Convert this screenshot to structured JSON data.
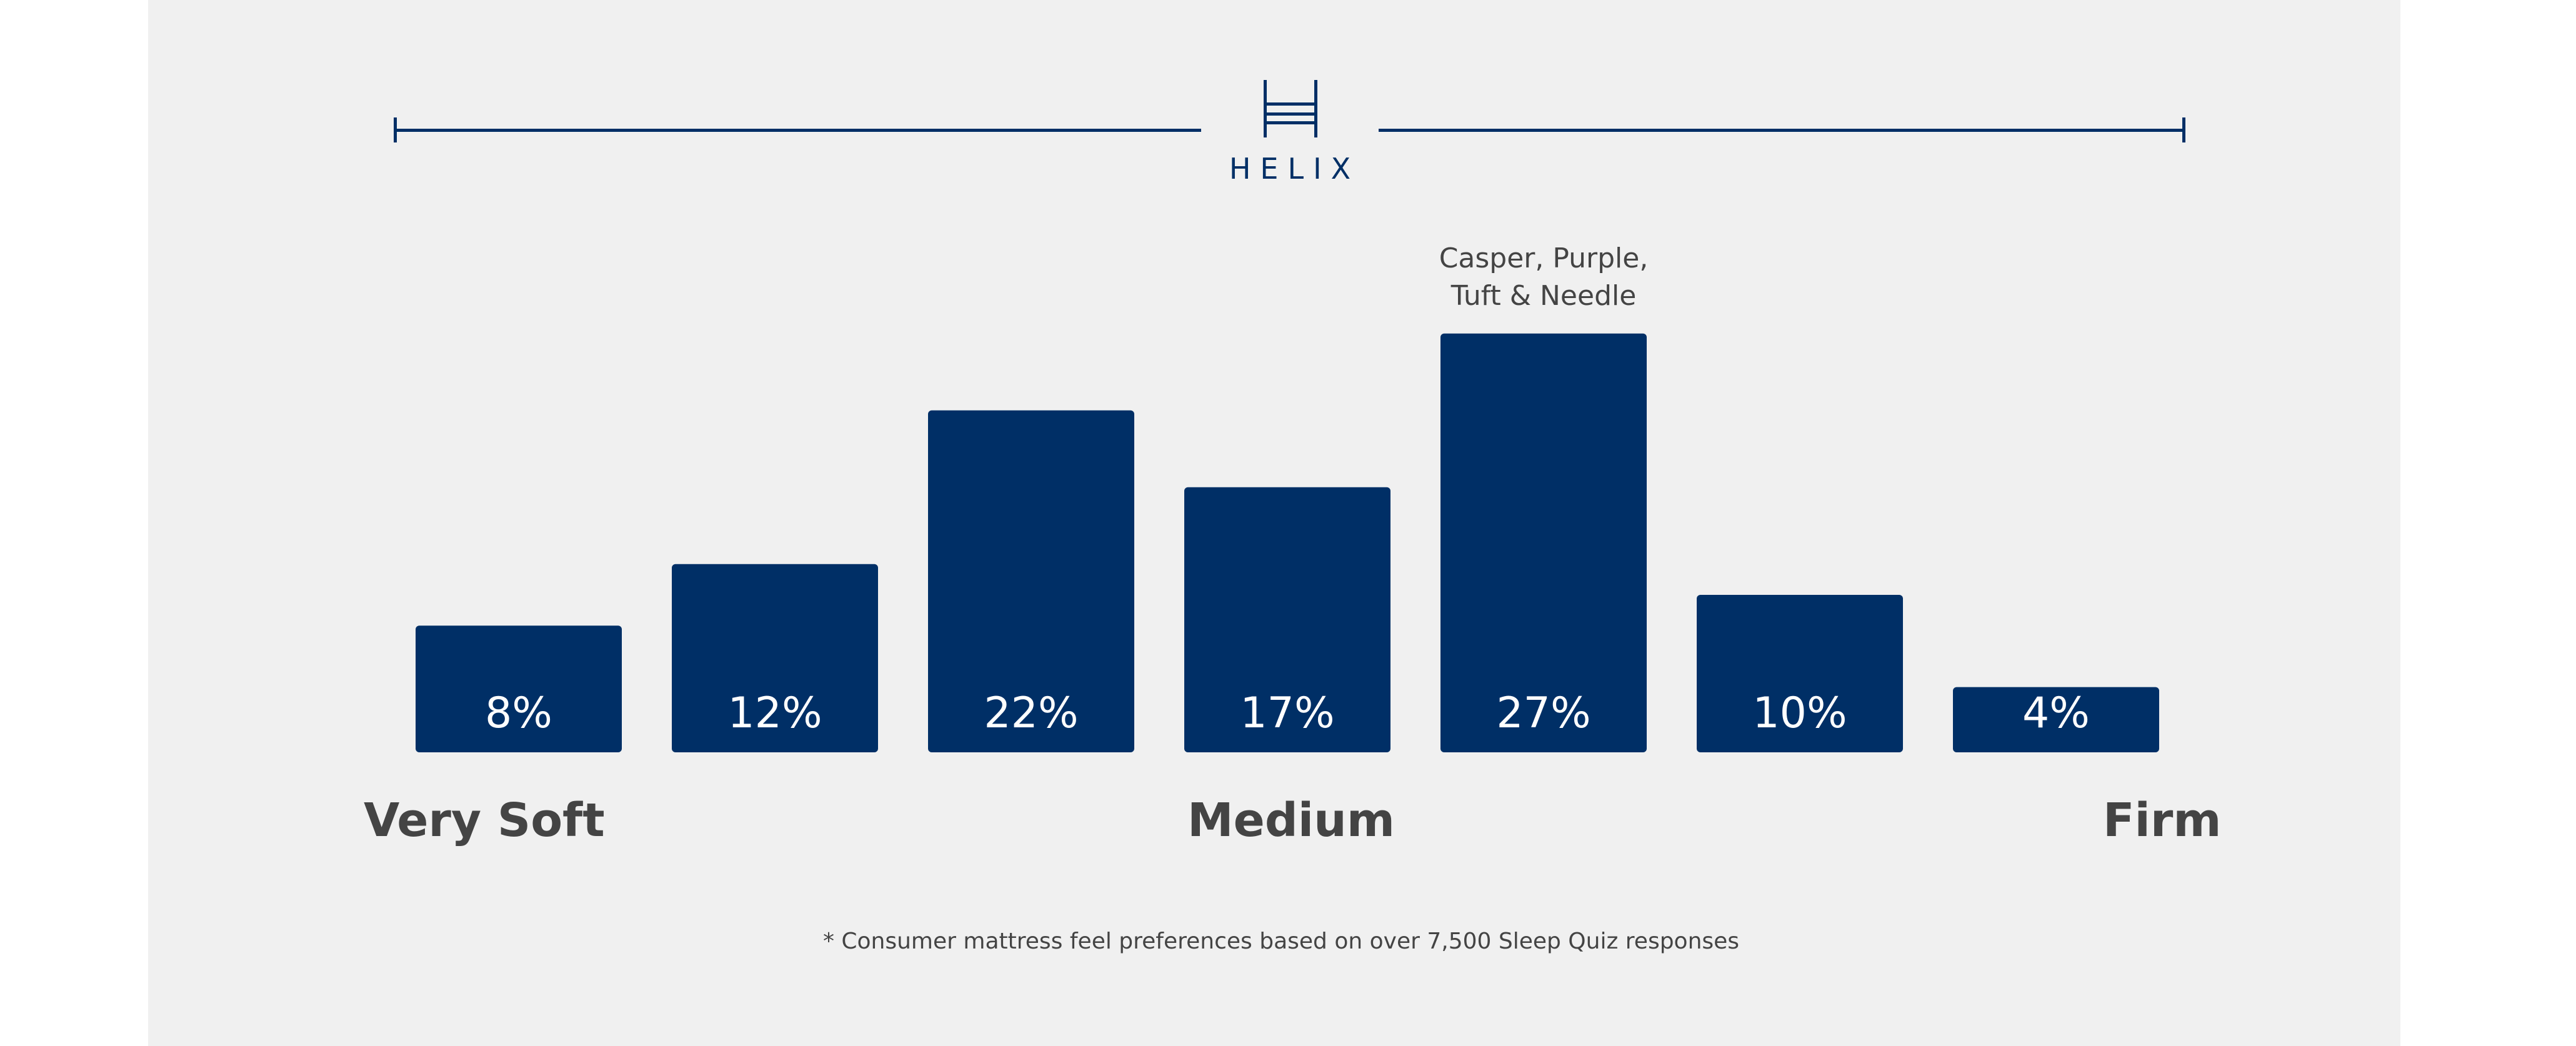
{
  "brand": {
    "logo_text": "HELIX",
    "logo_icon": "bed-frame-icon",
    "color": "#002f66"
  },
  "chart_data": {
    "type": "bar",
    "categories": [
      "",
      "",
      "",
      "",
      "",
      "",
      ""
    ],
    "values": [
      8,
      12,
      22,
      17,
      27,
      10,
      4
    ],
    "value_labels": [
      "8%",
      "12%",
      "22%",
      "17%",
      "27%",
      "10%",
      "4%"
    ],
    "unit": "%",
    "ylim": [
      0,
      30
    ],
    "grid": false,
    "bar_color": "#002f66",
    "label_color": "#ffffff",
    "annotation": {
      "bar_index": 4,
      "lines": [
        "Casper, Purple,",
        "Tuft & Needle"
      ]
    },
    "scale_labels": {
      "left": "Very Soft",
      "center": "Medium",
      "right": "Firm"
    }
  },
  "footnote": "* Consumer mattress feel preferences based on over 7,500 Sleep Quiz responses"
}
